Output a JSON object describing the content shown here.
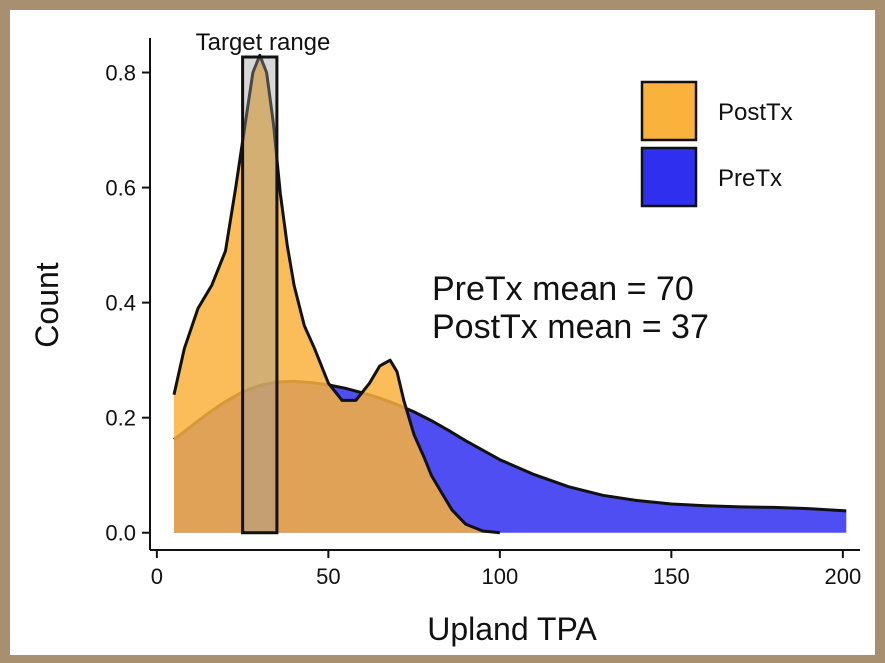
{
  "chart_data": {
    "type": "area",
    "xlabel": "Upland TPA",
    "ylabel": "Count",
    "xlim": [
      -2,
      205
    ],
    "ylim": [
      -0.03,
      0.86
    ],
    "xticks": [
      0,
      50,
      100,
      150,
      200
    ],
    "yticks": [
      0.0,
      0.2,
      0.4,
      0.6,
      0.8
    ],
    "ytick_labels": [
      "0.0",
      "0.2",
      "0.4",
      "0.6",
      "0.8"
    ],
    "legend_position": "top-right",
    "series": [
      {
        "name": "PreTx",
        "color": "#2f2ff0",
        "x": [
          5,
          10,
          15,
          20,
          25,
          30,
          35,
          40,
          45,
          50,
          55,
          60,
          65,
          70,
          75,
          80,
          85,
          90,
          100,
          110,
          120,
          130,
          140,
          150,
          160,
          170,
          180,
          190,
          201
        ],
        "y": [
          0.162,
          0.185,
          0.208,
          0.228,
          0.245,
          0.256,
          0.262,
          0.263,
          0.261,
          0.257,
          0.251,
          0.243,
          0.234,
          0.223,
          0.21,
          0.195,
          0.178,
          0.16,
          0.127,
          0.101,
          0.08,
          0.065,
          0.056,
          0.05,
          0.047,
          0.045,
          0.044,
          0.042,
          0.038
        ]
      },
      {
        "name": "PostTx",
        "color": "#f9b23c",
        "x": [
          5,
          8,
          12,
          16,
          20,
          23,
          26,
          28,
          30,
          32,
          34,
          36,
          38,
          40,
          43,
          46,
          50,
          54,
          58,
          62,
          65,
          68,
          70,
          72,
          75,
          78,
          80,
          83,
          86,
          90,
          95,
          100
        ],
        "y": [
          0.24,
          0.32,
          0.39,
          0.43,
          0.49,
          0.6,
          0.72,
          0.8,
          0.83,
          0.8,
          0.71,
          0.59,
          0.5,
          0.43,
          0.36,
          0.32,
          0.26,
          0.23,
          0.23,
          0.26,
          0.29,
          0.3,
          0.28,
          0.23,
          0.17,
          0.13,
          0.1,
          0.07,
          0.04,
          0.015,
          0.003,
          0.0
        ]
      }
    ],
    "target_range": {
      "label": "Target range",
      "x_min": 25,
      "x_max": 35
    },
    "annotations": [
      "PreTx mean = 70",
      "PostTx mean = 37"
    ]
  }
}
